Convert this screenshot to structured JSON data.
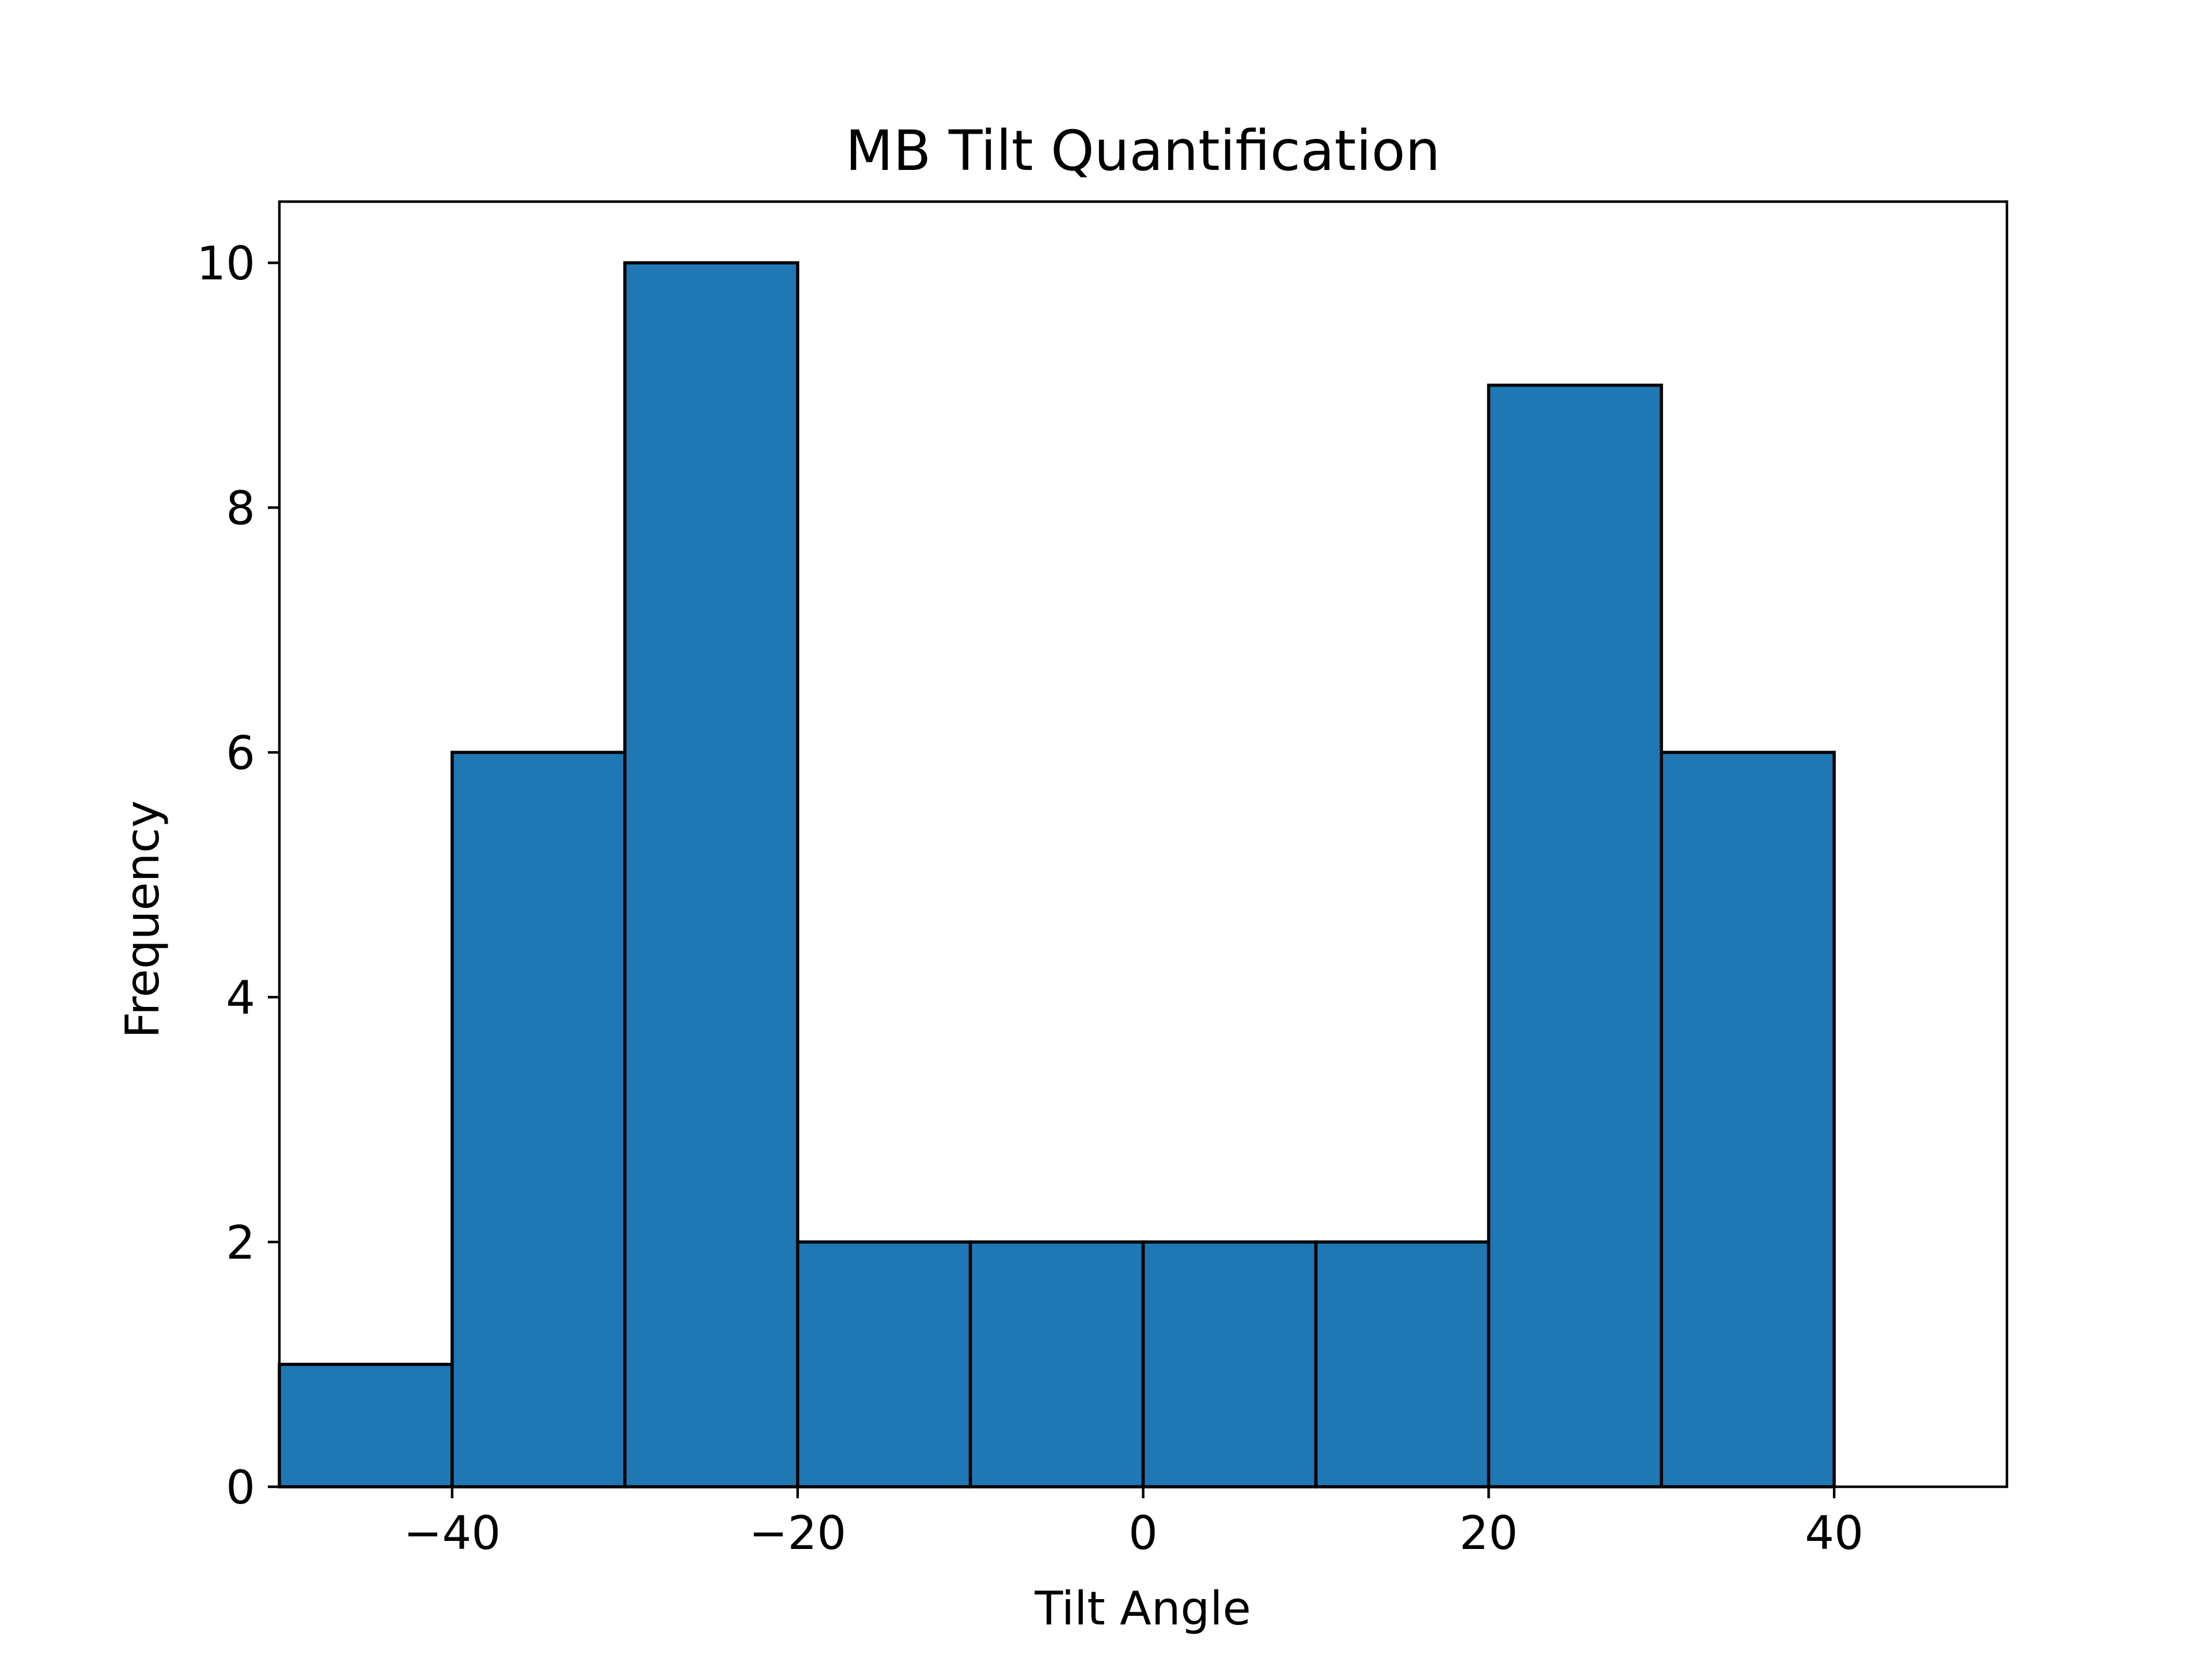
{
  "chart_data": {
    "type": "bar",
    "title": "MB Tilt Quantification",
    "xlabel": "Tilt Angle",
    "ylabel": "Frequency",
    "bin_edges": [
      -50,
      -40,
      -30,
      -20,
      -10,
      0,
      10,
      20,
      30,
      40,
      50
    ],
    "values": [
      1,
      6,
      10,
      2,
      2,
      2,
      2,
      9,
      6,
      0
    ],
    "xlim": [
      -50,
      50
    ],
    "ylim": [
      0,
      10.5
    ],
    "xticks": [
      -40,
      -20,
      0,
      20,
      40
    ],
    "xtick_labels": [
      "−40",
      "−20",
      "0",
      "20",
      "40"
    ],
    "yticks": [
      0,
      2,
      4,
      6,
      8,
      10
    ],
    "ytick_labels": [
      "0",
      "2",
      "4",
      "6",
      "8",
      "10"
    ],
    "bar_color": "#1f77b4",
    "edge_color": "#000000",
    "grid": false,
    "legend": "none"
  }
}
